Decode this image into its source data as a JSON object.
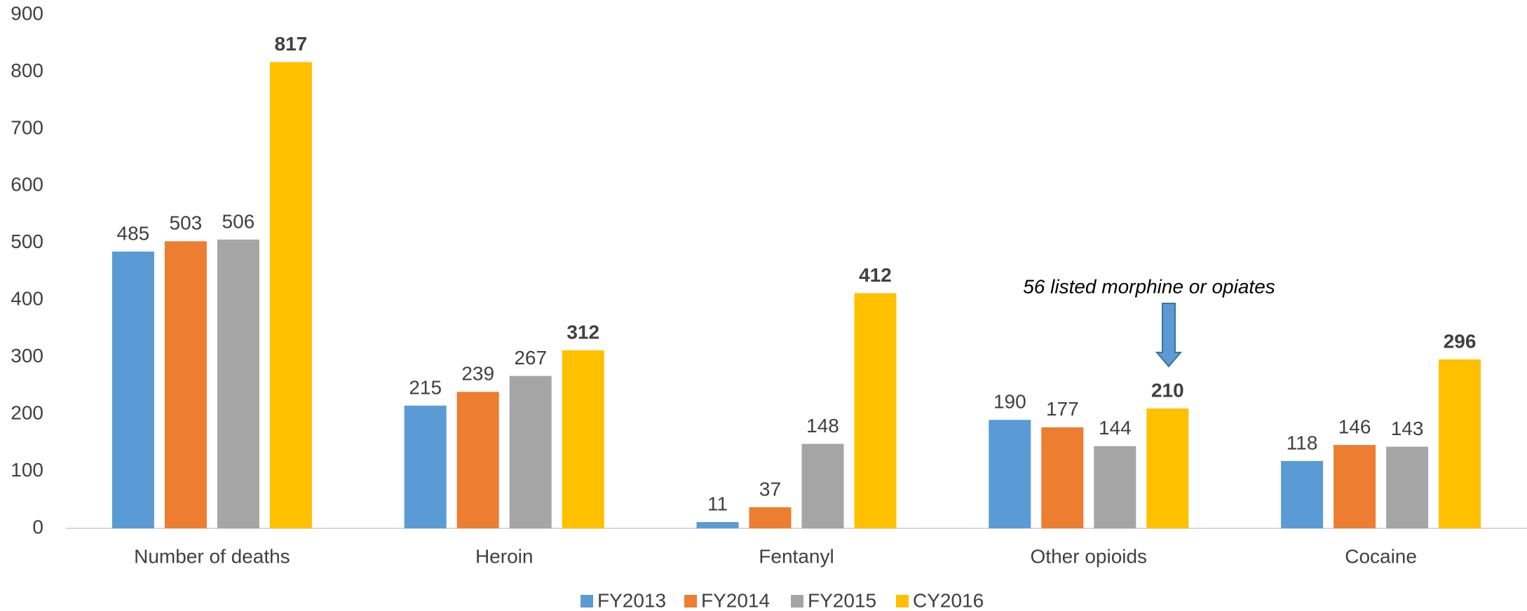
{
  "chart_data": {
    "type": "bar",
    "categories": [
      "Number of deaths",
      "Heroin",
      "Fentanyl",
      "Other opioids",
      "Cocaine"
    ],
    "series": [
      {
        "name": "FY2013",
        "color": "#5b9bd5",
        "values": [
          485,
          215,
          11,
          190,
          118
        ]
      },
      {
        "name": "FY2014",
        "color": "#ed7d31",
        "values": [
          503,
          239,
          37,
          177,
          146
        ]
      },
      {
        "name": "FY2015",
        "color": "#a5a5a5",
        "values": [
          506,
          267,
          148,
          144,
          143
        ]
      },
      {
        "name": "CY2016",
        "color": "#ffc000",
        "values": [
          817,
          312,
          412,
          210,
          296
        ]
      }
    ],
    "ylim": [
      0,
      900
    ],
    "yticks": [
      0,
      100,
      200,
      300,
      400,
      500,
      600,
      700,
      800,
      900
    ],
    "grid": false,
    "legend": "bottom",
    "annotation": "56 listed morphine or opiates"
  }
}
